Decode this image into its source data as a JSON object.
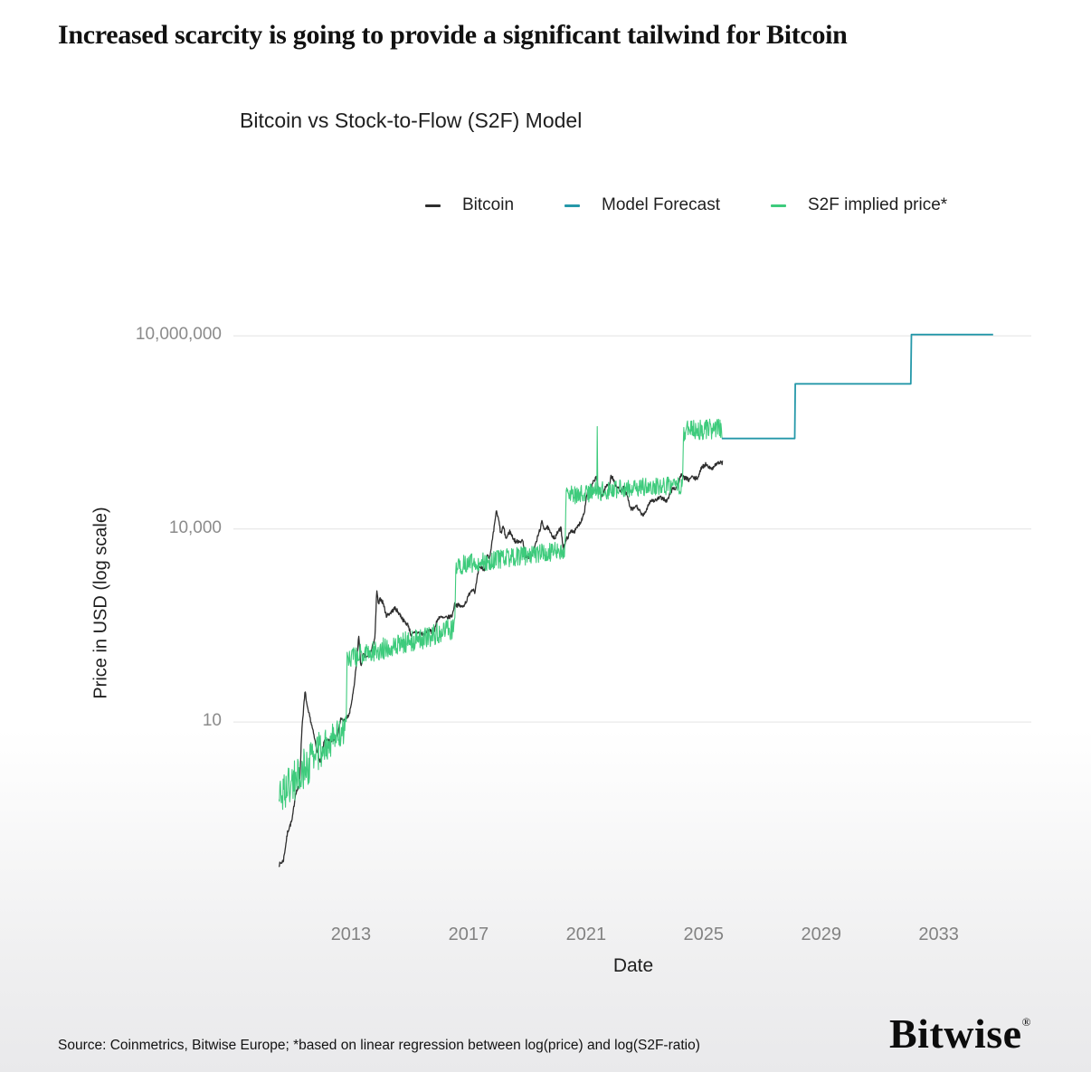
{
  "page": {
    "headline": "Increased scarcity is going to provide a significant tailwind for Bitcoin",
    "source_note": "Source: Coinmetrics, Bitwise Europe; *based on linear regression between log(price) and log(S2F-ratio)",
    "brand": "Bitwise",
    "brand_mark": "®"
  },
  "chart_data": {
    "type": "line",
    "title": "Bitcoin vs Stock-to-Flow (S2F) Model",
    "xlabel": "Date",
    "ylabel": "Price in USD (log scale)",
    "grid": "horizontal-only",
    "legend_position": "top",
    "x_range": [
      2009.0,
      2036.15
    ],
    "y_log_range": [
      -2.05,
      7.3
    ],
    "x_ticks": [
      {
        "value": 2013,
        "label": "2013"
      },
      {
        "value": 2017,
        "label": "2017"
      },
      {
        "value": 2021,
        "label": "2021"
      },
      {
        "value": 2025,
        "label": "2025"
      },
      {
        "value": 2029,
        "label": "2029"
      },
      {
        "value": 2033,
        "label": "2033"
      }
    ],
    "y_ticks": [
      {
        "value": 10,
        "label": "10"
      },
      {
        "value": 10000,
        "label": "10,000"
      },
      {
        "value": 10000000,
        "label": "10,000,000"
      }
    ],
    "legend": [
      {
        "label": "Bitcoin",
        "color": "#2e2e2e"
      },
      {
        "label": "Model Forecast",
        "color": "#2598a9"
      },
      {
        "label": "S2F implied price*",
        "color": "#3ecb7c"
      }
    ],
    "noise_seed": 7,
    "series": [
      {
        "name": "Bitcoin",
        "color": "#2e2e2e",
        "width": 1.3,
        "sample_step": 0.014,
        "noise": 0.032,
        "points": [
          [
            2010.55,
            0.06
          ],
          [
            2010.7,
            0.07
          ],
          [
            2010.85,
            0.2
          ],
          [
            2011.0,
            0.3
          ],
          [
            2011.12,
            0.8
          ],
          [
            2011.25,
            1.0
          ],
          [
            2011.33,
            8
          ],
          [
            2011.44,
            30
          ],
          [
            2011.52,
            16
          ],
          [
            2011.62,
            11
          ],
          [
            2011.78,
            5
          ],
          [
            2011.95,
            2.3
          ],
          [
            2012.1,
            5.2
          ],
          [
            2012.25,
            5.0
          ],
          [
            2012.4,
            5.3
          ],
          [
            2012.55,
            6.6
          ],
          [
            2012.65,
            11
          ],
          [
            2012.8,
            10.5
          ],
          [
            2012.95,
            13.2
          ],
          [
            2013.1,
            33
          ],
          [
            2013.2,
            90
          ],
          [
            2013.27,
            230
          ],
          [
            2013.33,
            70
          ],
          [
            2013.42,
            110
          ],
          [
            2013.55,
            100
          ],
          [
            2013.7,
            130
          ],
          [
            2013.82,
            210
          ],
          [
            2013.88,
            1150
          ],
          [
            2013.93,
            650
          ],
          [
            2014.0,
            830
          ],
          [
            2014.1,
            700
          ],
          [
            2014.2,
            450
          ],
          [
            2014.35,
            500
          ],
          [
            2014.5,
            590
          ],
          [
            2014.65,
            480
          ],
          [
            2014.8,
            370
          ],
          [
            2014.95,
            320
          ],
          [
            2015.05,
            220
          ],
          [
            2015.2,
            250
          ],
          [
            2015.35,
            240
          ],
          [
            2015.5,
            230
          ],
          [
            2015.65,
            270
          ],
          [
            2015.8,
            235
          ],
          [
            2015.92,
            360
          ],
          [
            2016.0,
            430
          ],
          [
            2016.15,
            410
          ],
          [
            2016.3,
            420
          ],
          [
            2016.45,
            450
          ],
          [
            2016.52,
            670
          ],
          [
            2016.65,
            650
          ],
          [
            2016.8,
            610
          ],
          [
            2016.95,
            790
          ],
          [
            2017.05,
            1050
          ],
          [
            2017.15,
            1190
          ],
          [
            2017.22,
            1050
          ],
          [
            2017.35,
            2400
          ],
          [
            2017.45,
            2500
          ],
          [
            2017.55,
            2300
          ],
          [
            2017.65,
            4300
          ],
          [
            2017.72,
            3300
          ],
          [
            2017.8,
            6100
          ],
          [
            2017.88,
            11000
          ],
          [
            2017.94,
            19000
          ],
          [
            2018.03,
            13500
          ],
          [
            2018.1,
            8300
          ],
          [
            2018.18,
            11000
          ],
          [
            2018.28,
            7000
          ],
          [
            2018.4,
            9200
          ],
          [
            2018.5,
            7500
          ],
          [
            2018.6,
            6300
          ],
          [
            2018.72,
            6500
          ],
          [
            2018.85,
            6400
          ],
          [
            2018.92,
            3900
          ],
          [
            2019.0,
            3750
          ],
          [
            2019.1,
            3600
          ],
          [
            2019.25,
            5200
          ],
          [
            2019.4,
            8800
          ],
          [
            2019.5,
            12800
          ],
          [
            2019.58,
            10200
          ],
          [
            2019.7,
            10500
          ],
          [
            2019.8,
            8300
          ],
          [
            2019.95,
            7200
          ],
          [
            2020.05,
            9200
          ],
          [
            2020.15,
            10200
          ],
          [
            2020.22,
            5000
          ],
          [
            2020.35,
            7100
          ],
          [
            2020.5,
            9400
          ],
          [
            2020.62,
            9200
          ],
          [
            2020.75,
            11500
          ],
          [
            2020.85,
            13800
          ],
          [
            2020.95,
            19500
          ],
          [
            2021.0,
            29000
          ],
          [
            2021.05,
            38000
          ],
          [
            2021.12,
            32000
          ],
          [
            2021.2,
            48000
          ],
          [
            2021.3,
            59000
          ],
          [
            2021.35,
            63000
          ],
          [
            2021.45,
            38000
          ],
          [
            2021.55,
            33000
          ],
          [
            2021.62,
            40000
          ],
          [
            2021.7,
            47000
          ],
          [
            2021.8,
            50000
          ],
          [
            2021.85,
            67000
          ],
          [
            2021.95,
            57000
          ],
          [
            2022.0,
            47000
          ],
          [
            2022.1,
            43000
          ],
          [
            2022.2,
            39000
          ],
          [
            2022.3,
            45000
          ],
          [
            2022.42,
            30000
          ],
          [
            2022.5,
            21000
          ],
          [
            2022.6,
            20000
          ],
          [
            2022.7,
            23000
          ],
          [
            2022.8,
            20000
          ],
          [
            2022.88,
            16500
          ],
          [
            2023.0,
            16800
          ],
          [
            2023.1,
            23000
          ],
          [
            2023.2,
            28000
          ],
          [
            2023.35,
            27500
          ],
          [
            2023.5,
            30500
          ],
          [
            2023.65,
            29500
          ],
          [
            2023.75,
            26500
          ],
          [
            2023.85,
            34500
          ],
          [
            2023.95,
            43000
          ],
          [
            2024.05,
            42500
          ],
          [
            2024.15,
            52000
          ],
          [
            2024.22,
            69000
          ],
          [
            2024.3,
            64000
          ],
          [
            2024.4,
            61000
          ],
          [
            2024.5,
            57500
          ],
          [
            2024.6,
            65000
          ],
          [
            2024.7,
            60000
          ],
          [
            2024.8,
            63000
          ],
          [
            2024.88,
            76000
          ],
          [
            2024.95,
            97000
          ],
          [
            2025.0,
            94000
          ],
          [
            2025.08,
            102000
          ],
          [
            2025.15,
            97000
          ],
          [
            2025.25,
            84000
          ],
          [
            2025.35,
            95000
          ],
          [
            2025.45,
            104000
          ],
          [
            2025.55,
            108000
          ],
          [
            2025.65,
            107000
          ]
        ]
      },
      {
        "name": "S2F implied price*",
        "color": "#3ecb7c",
        "width": 1.1,
        "sample_step": 0.016,
        "noise": [
          {
            "until": 2012.0,
            "amp": 0.32
          },
          {
            "until": 2012.86,
            "amp": 0.24
          },
          {
            "until": 2016.56,
            "amp": 0.17
          },
          {
            "until": 2020.3,
            "amp": 0.15
          },
          {
            "until": 2024.3,
            "amp": 0.15
          },
          {
            "until": 2026.0,
            "amp": 0.16
          }
        ],
        "spikes": [
          {
            "x": 2021.38,
            "price": 390000
          }
        ],
        "points": [
          [
            2010.55,
            0.7
          ],
          [
            2011.3,
            1.6
          ],
          [
            2011.9,
            3.5
          ],
          [
            2012.4,
            5.5
          ],
          [
            2012.84,
            8
          ],
          [
            2012.86,
            95
          ],
          [
            2013.6,
            120
          ],
          [
            2014.6,
            160
          ],
          [
            2015.6,
            210
          ],
          [
            2016.54,
            290
          ],
          [
            2016.56,
            2700
          ],
          [
            2017.5,
            3100
          ],
          [
            2018.5,
            3600
          ],
          [
            2019.5,
            4200
          ],
          [
            2020.28,
            4600
          ],
          [
            2020.32,
            33000
          ],
          [
            2021.3,
            38000
          ],
          [
            2022.3,
            42000
          ],
          [
            2023.3,
            45000
          ],
          [
            2024.28,
            48000
          ],
          [
            2024.32,
            330000
          ],
          [
            2025.0,
            350000
          ],
          [
            2025.65,
            370000
          ]
        ]
      },
      {
        "name": "Model Forecast",
        "color": "#2598a9",
        "width": 1.8,
        "points": [
          [
            2025.62,
            255000
          ],
          [
            2028.1,
            255000
          ],
          [
            2028.12,
            1800000
          ],
          [
            2032.05,
            1800000
          ],
          [
            2032.07,
            10500000
          ],
          [
            2034.85,
            10500000
          ]
        ]
      }
    ]
  }
}
